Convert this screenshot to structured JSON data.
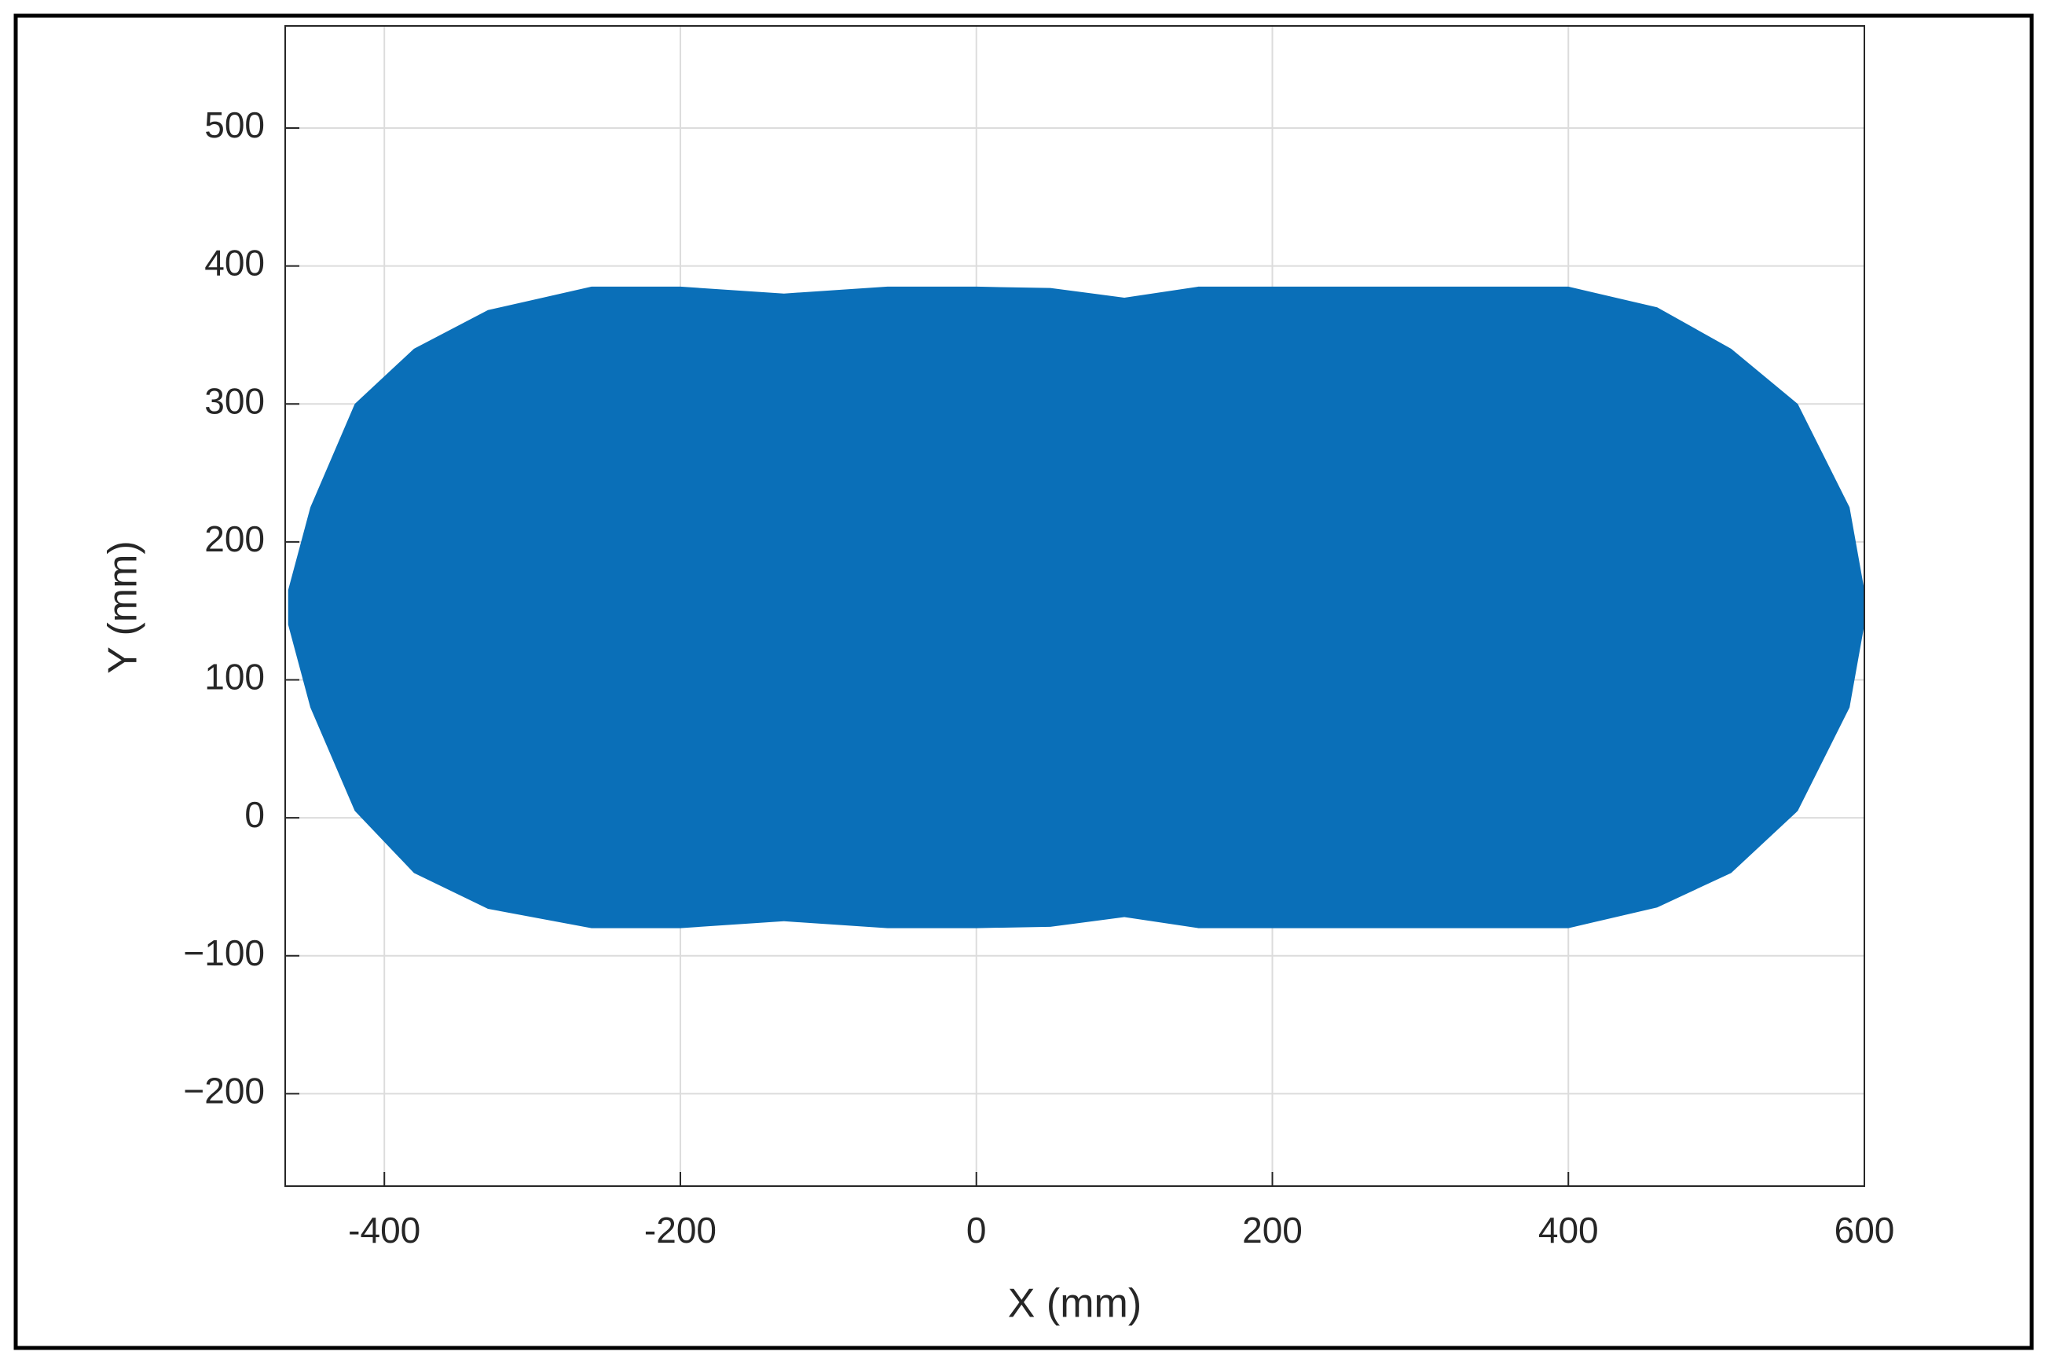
{
  "chart_data": {
    "type": "area",
    "xlabel": "X (mm)",
    "ylabel": "Y (mm)",
    "x": [
      -465,
      -450,
      -420,
      -380,
      -330,
      -260,
      -200,
      -130,
      -60,
      0,
      50,
      100,
      150,
      200,
      260,
      330,
      400,
      460,
      510,
      555,
      590,
      600
    ],
    "y_upper": [
      165,
      225,
      300,
      340,
      368,
      385,
      385,
      380,
      385,
      385,
      384,
      377,
      385,
      385,
      385,
      385,
      385,
      370,
      340,
      300,
      225,
      165
    ],
    "y_lower": [
      140,
      80,
      5,
      -40,
      -66,
      -80,
      -80,
      -75,
      -80,
      -80,
      -79,
      -72,
      -80,
      -80,
      -80,
      -80,
      -80,
      -65,
      -40,
      5,
      80,
      140
    ],
    "color": "#0a6fb8",
    "xlim": [
      -467,
      600
    ],
    "xticks": [
      -400,
      -200,
      0,
      200,
      400,
      600
    ],
    "ylim": [
      -267,
      574
    ],
    "yticks": [
      {
        "value": -200,
        "label": "−200"
      },
      {
        "value": -100,
        "label": "−100"
      },
      0,
      100,
      200,
      300,
      400,
      500
    ],
    "grid": true
  }
}
